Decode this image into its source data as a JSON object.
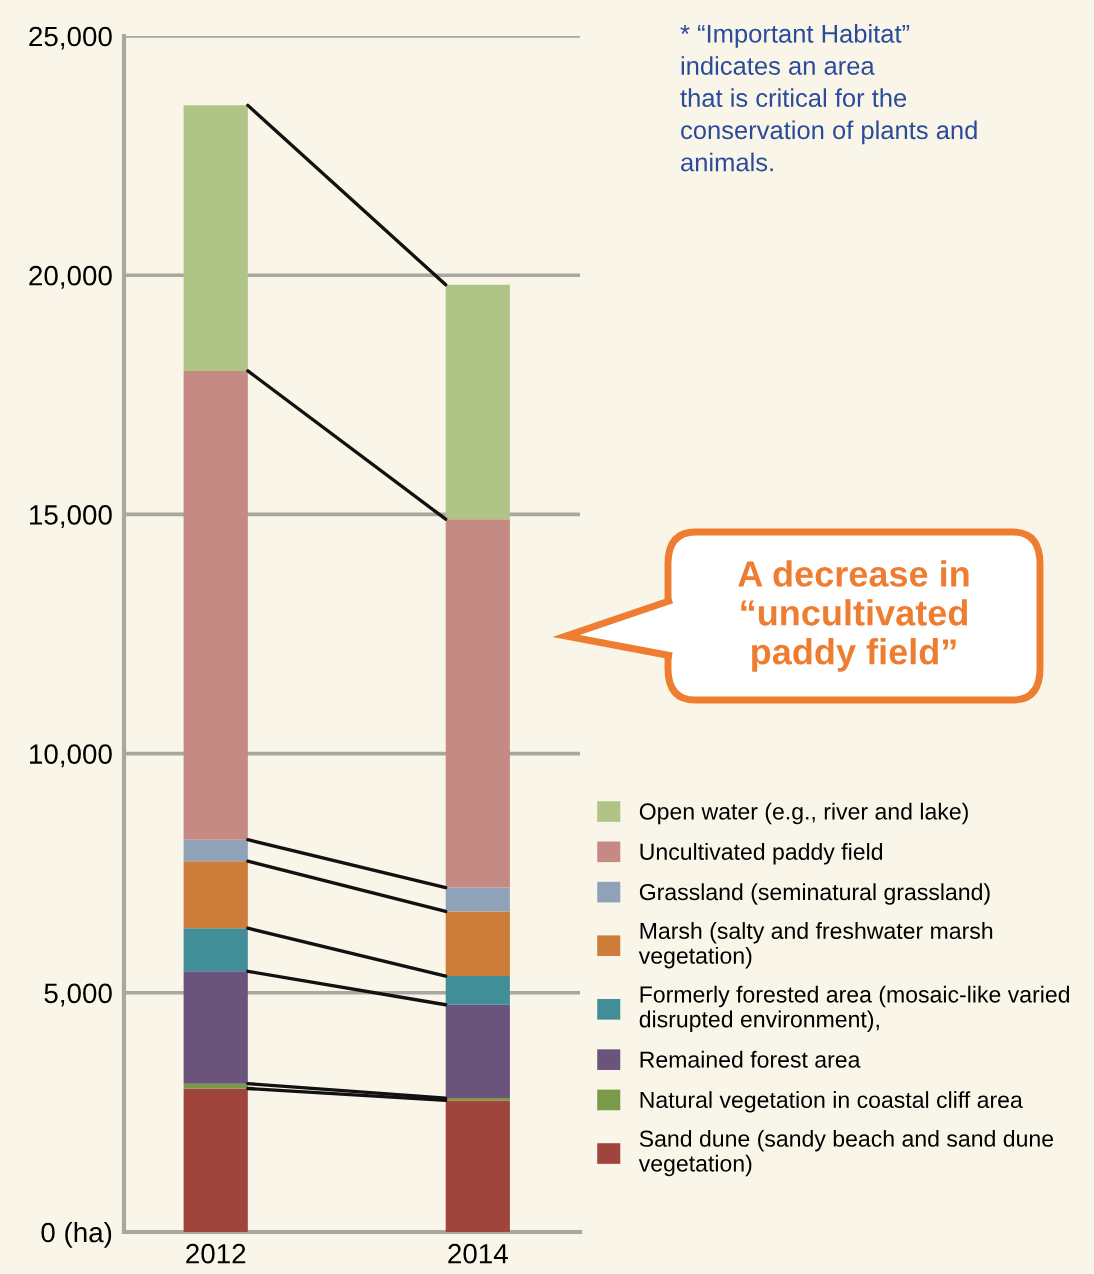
{
  "chart_data": {
    "type": "bar",
    "stacked": true,
    "categories": [
      "2012",
      "2014"
    ],
    "series": [
      {
        "name": "Sand dune (sandy beach and sand dune\nvegetation)",
        "color": "#a0453e",
        "values": [
          3000,
          2750
        ]
      },
      {
        "name": "Natural vegetation in coastal cliff area",
        "color": "#7a9a4a",
        "values": [
          100,
          50
        ]
      },
      {
        "name": "Remained forest area",
        "color": "#6a547c",
        "values": [
          2350,
          1950
        ]
      },
      {
        "name": "Formerly forested area (mosaic-like varied\ndisrupted environment),",
        "color": "#428e98",
        "values": [
          900,
          600
        ]
      },
      {
        "name": "Marsh (salty and freshwater marsh\nvegetation)",
        "color": "#cd7c3a",
        "values": [
          1400,
          1350
        ]
      },
      {
        "name": "Grassland (seminatural grassland)",
        "color": "#90a2b8",
        "values": [
          450,
          500
        ]
      },
      {
        "name": "Uncultivated paddy field",
        "color": "#c58a84",
        "values": [
          9800,
          7700
        ]
      },
      {
        "name": "Open water (e.g., river and lake)",
        "color": "#b0c488",
        "values": [
          5550,
          4900
        ]
      }
    ],
    "ylim": [
      0,
      25000
    ],
    "yticks": [
      {
        "value": 0,
        "label": "0 (ha)"
      },
      {
        "value": 5000,
        "label": "5,000"
      },
      {
        "value": 10000,
        "label": "10,000"
      },
      {
        "value": 15000,
        "label": "15,000"
      },
      {
        "value": 20000,
        "label": "20,000"
      },
      {
        "value": 25000,
        "label": "25,000"
      }
    ],
    "grid": "y",
    "legend": "bottom right",
    "annotations": [
      "* “Important Habitat”\nindicates an area\nthat is critical for the\nconservation of plants and\nanimals.",
      "A decrease in\n“uncultivated\npaddy field”"
    ]
  }
}
